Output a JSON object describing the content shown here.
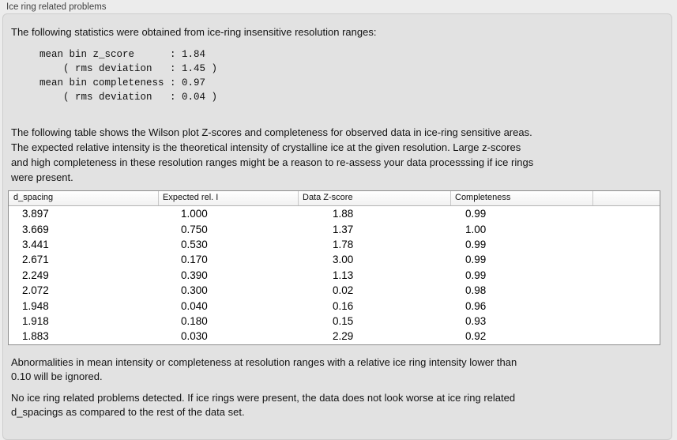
{
  "title": "Ice ring related problems",
  "sections": {
    "intro": "The following statistics were obtained from ice-ring insensitive resolution ranges:",
    "stats": "mean bin z_score      : 1.84\n    ( rms deviation   : 1.45 )\nmean bin completeness : 0.97\n    ( rms deviation   : 0.04 )",
    "table_caption": "The following table shows the Wilson plot Z-scores and completeness for observed data in ice-ring sensitive areas.\nThe expected relative intensity is the theoretical intensity of crystalline ice at the given resolution. Large z-scores\nand high completeness in these resolution ranges might be a reason to re-assess your data processsing if ice rings\nwere present.",
    "note_ignore": "Abnormalities in mean intensity or completeness at resolution ranges with a relative ice ring intensity lower than\n0.10 will be ignored.",
    "note_result": "No ice ring related problems detected. If ice rings were present, the data does not look worse at ice ring related\nd_spacings as compared to the rest of the data set."
  },
  "table": {
    "columns": [
      "d_spacing",
      "Expected rel. I",
      "Data Z-score",
      "Completeness",
      ""
    ],
    "rows": [
      [
        "3.897",
        "1.000",
        "1.88",
        "0.99"
      ],
      [
        "3.669",
        "0.750",
        "1.37",
        "1.00"
      ],
      [
        "3.441",
        "0.530",
        "1.78",
        "0.99"
      ],
      [
        "2.671",
        "0.170",
        "3.00",
        "0.99"
      ],
      [
        "2.249",
        "0.390",
        "1.13",
        "0.99"
      ],
      [
        "2.072",
        "0.300",
        "0.02",
        "0.98"
      ],
      [
        "1.948",
        "0.040",
        "0.16",
        "0.96"
      ],
      [
        "1.918",
        "0.180",
        "0.15",
        "0.93"
      ],
      [
        "1.883",
        "0.030",
        "2.29",
        "0.92"
      ]
    ]
  },
  "colors": {
    "page_background": "#ececec",
    "panel_background": "#e2e2e2",
    "panel_border": "#cdcdcd",
    "table_border": "#8c8c8c",
    "table_header_background": "#f7f7f7",
    "body_text": "#131313"
  }
}
